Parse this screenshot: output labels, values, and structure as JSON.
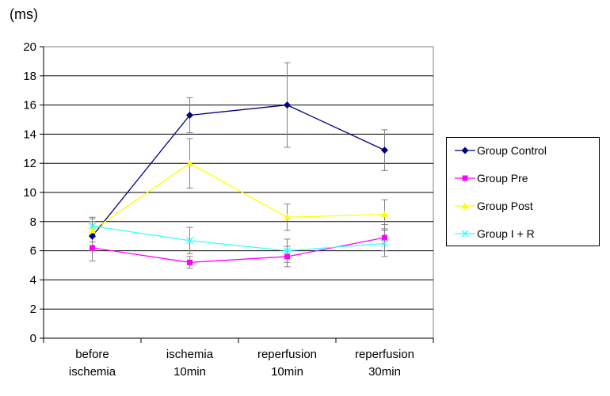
{
  "chart_data": {
    "type": "line",
    "unit_label": "(ms)",
    "categories": [
      [
        "before",
        "ischemia"
      ],
      [
        "ischemia",
        "10min"
      ],
      [
        "reperfusion",
        "10min"
      ],
      [
        "reperfusion",
        "30min"
      ]
    ],
    "ylim": [
      0,
      20
    ],
    "yticks": [
      "0",
      "2",
      "4",
      "6",
      "8",
      "10",
      "12",
      "14",
      "16",
      "18",
      "20"
    ],
    "grid": true,
    "legend_position": "right",
    "series": [
      {
        "name": "Group Control",
        "color": "#000080",
        "marker": "diamond",
        "values": [
          7.0,
          15.3,
          16.0,
          12.9
        ],
        "err": [
          1.0,
          1.2,
          2.9,
          1.4
        ]
      },
      {
        "name": "Group Pre",
        "color": "#FF00FF",
        "marker": "square",
        "values": [
          6.2,
          5.2,
          5.6,
          6.9
        ],
        "err": [
          0.9,
          0.4,
          0.7,
          0.9
        ]
      },
      {
        "name": "Group Post",
        "color": "#FFFF00",
        "marker": "triangle",
        "values": [
          7.4,
          12.0,
          8.3,
          8.5
        ],
        "err": [
          0.8,
          1.7,
          0.9,
          1.0
        ]
      },
      {
        "name": "Group I + R",
        "color": "#33FFFF",
        "marker": "x",
        "values": [
          7.7,
          6.7,
          6.0,
          6.5
        ],
        "err": [
          0.6,
          0.9,
          0.8,
          0.9
        ]
      }
    ]
  }
}
